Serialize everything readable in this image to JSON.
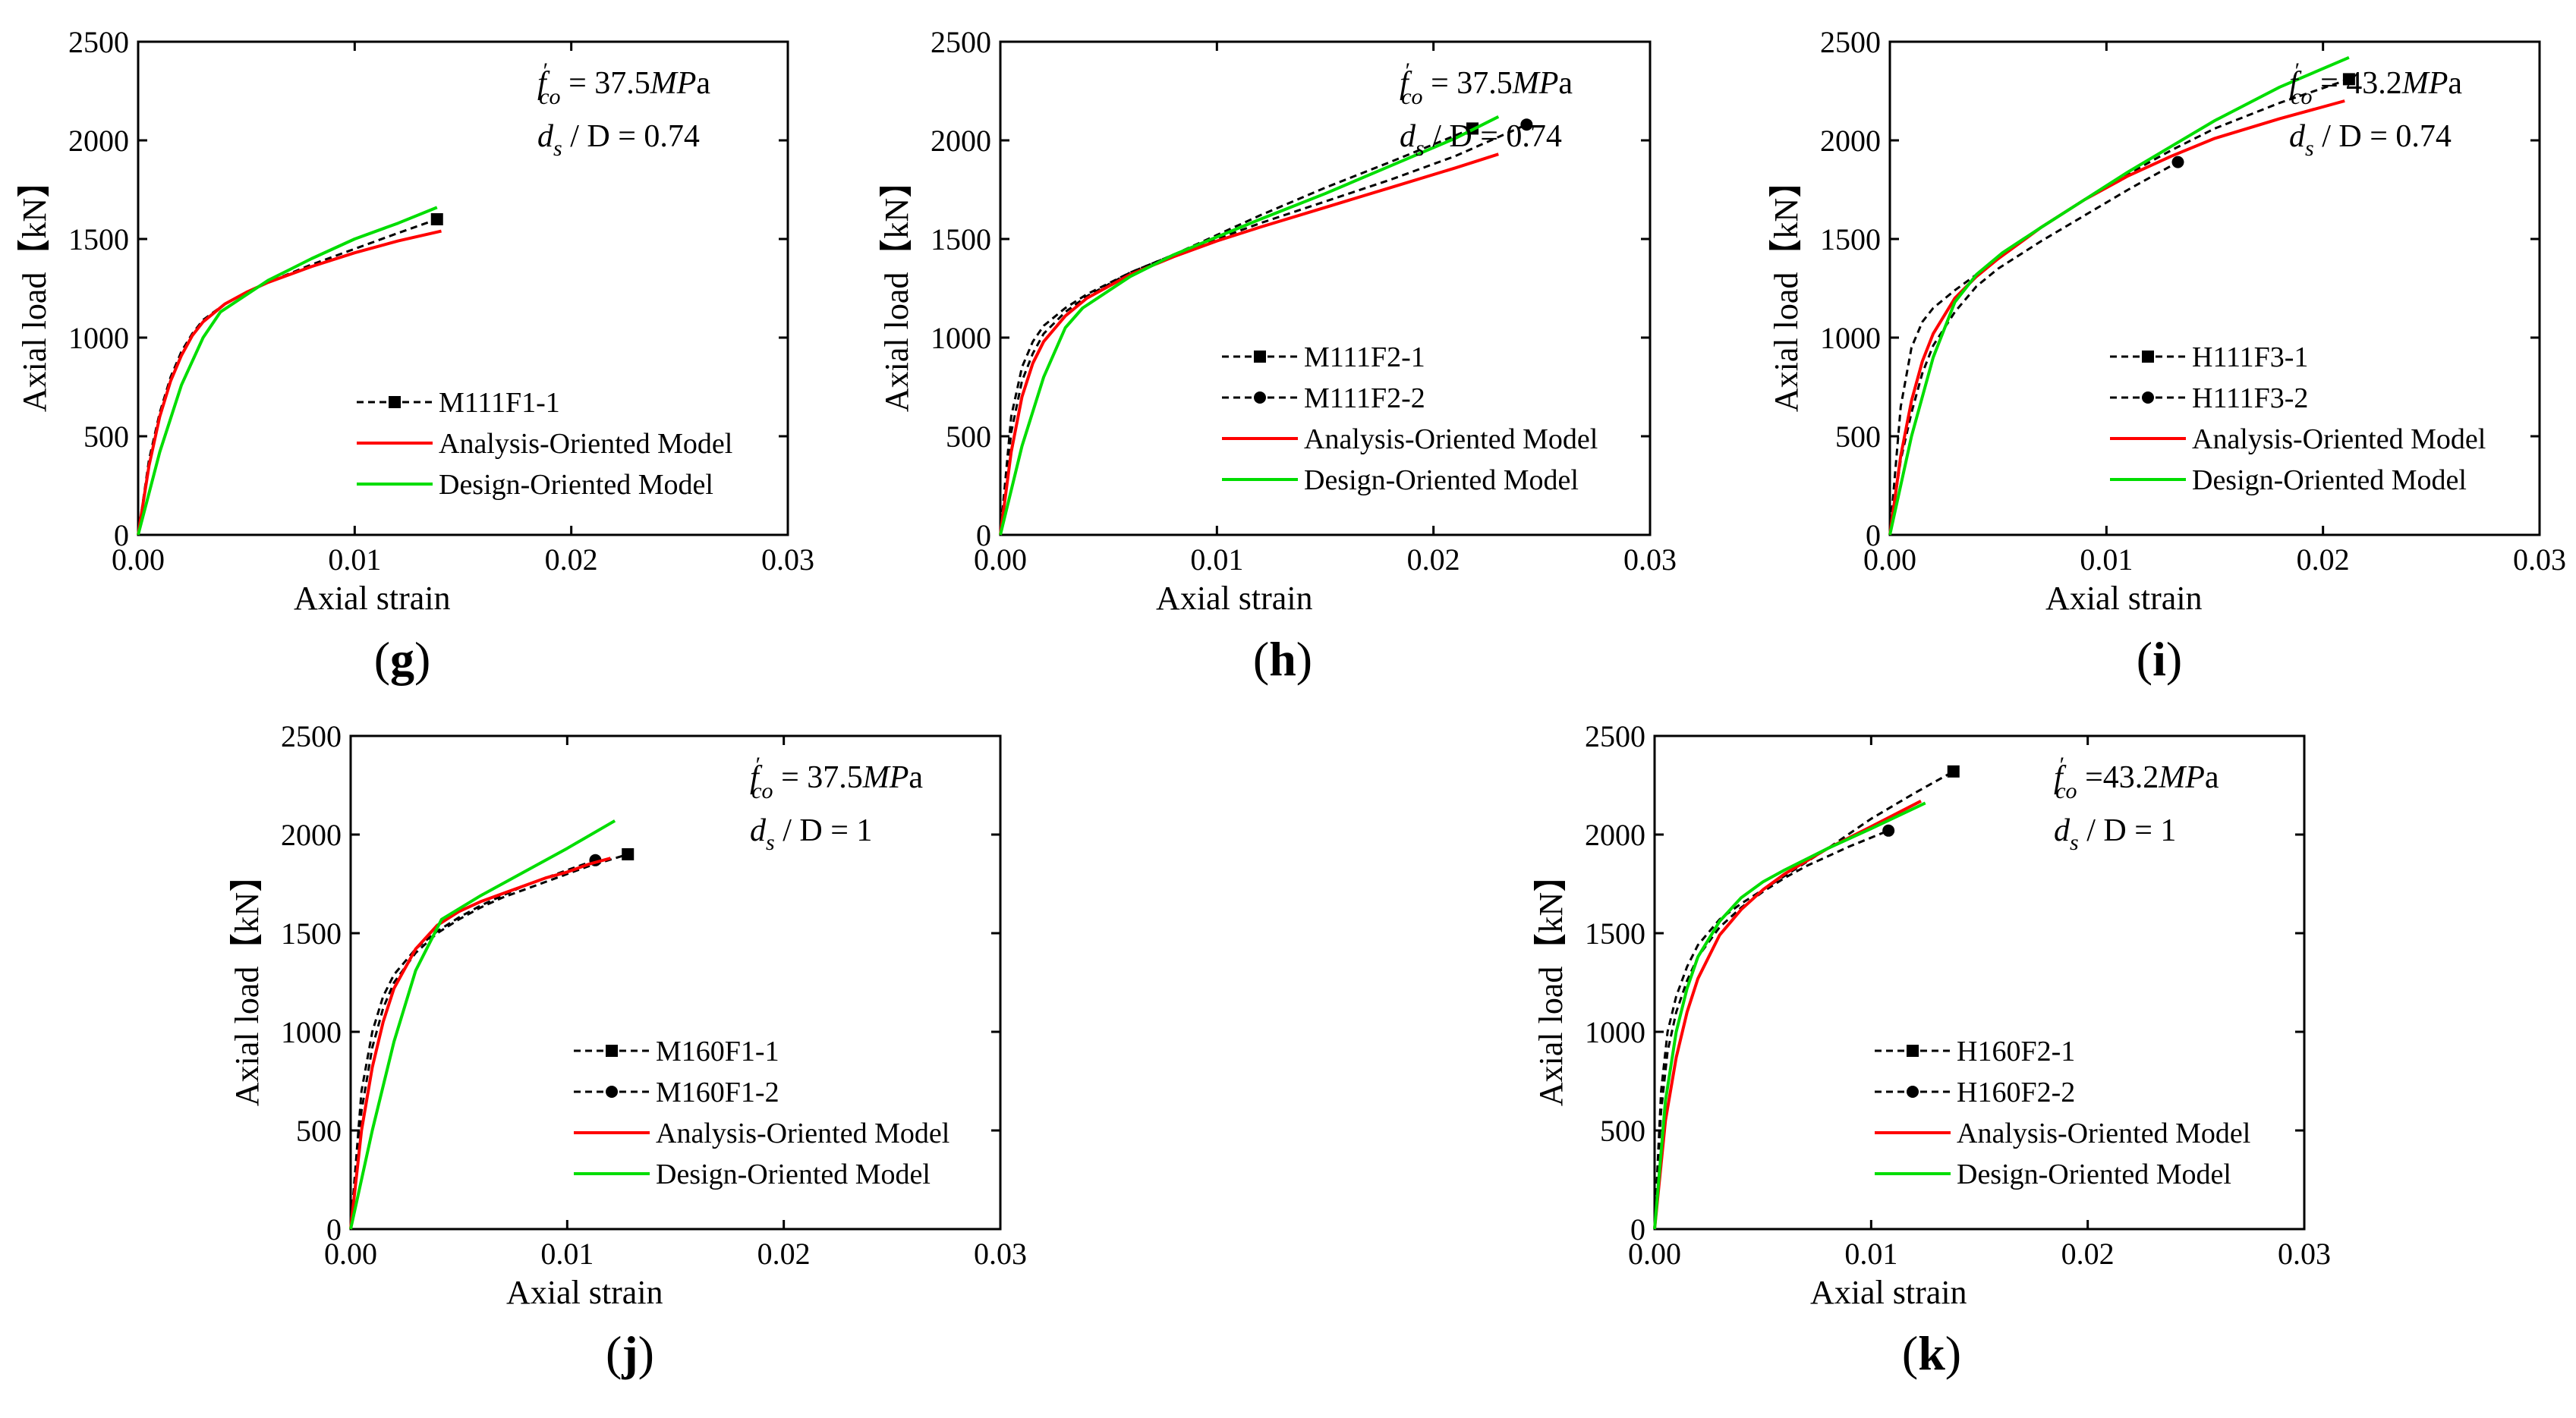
{
  "figure": {
    "paren_open": "(",
    "paren_close": ")"
  },
  "colors": {
    "analysis": "#ff0000",
    "design": "#00dd00",
    "experimental": "#000000"
  },
  "chart_data": [
    {
      "id": "g",
      "panel_label": "g",
      "type": "line",
      "xlabel": "Axial strain",
      "ylabel": "Axial load【kN】",
      "xlim": [
        0,
        0.03
      ],
      "ylim": [
        0,
        2500
      ],
      "xticks": [
        "0.00",
        "0.01",
        "0.02",
        "0.03"
      ],
      "yticks": [
        "0",
        "500",
        "1000",
        "1500",
        "2000",
        "2500"
      ],
      "annotation": {
        "fco_value": " = 37.5",
        "fco_unit_italic": "MP",
        "fco_unit_tail": "a",
        "ratio_value": " / D = 0.74"
      },
      "legend_position": "bottom-right",
      "series": [
        {
          "name": "M111F1-1",
          "kind": "exp",
          "marker": "square",
          "x": [
            0,
            0.0005,
            0.001,
            0.0015,
            0.002,
            0.0025,
            0.003,
            0.004,
            0.005,
            0.006,
            0.008,
            0.01,
            0.012,
            0.0138
          ],
          "y": [
            0,
            380,
            620,
            800,
            930,
            1020,
            1090,
            1170,
            1230,
            1280,
            1370,
            1450,
            1530,
            1600
          ]
        },
        {
          "name": "Analysis-Oriented Model",
          "kind": "analysis",
          "x": [
            0,
            0.0005,
            0.001,
            0.0015,
            0.002,
            0.0025,
            0.003,
            0.004,
            0.005,
            0.006,
            0.008,
            0.01,
            0.012,
            0.014
          ],
          "y": [
            0,
            350,
            600,
            780,
            910,
            1010,
            1080,
            1170,
            1230,
            1280,
            1360,
            1430,
            1490,
            1540
          ]
        },
        {
          "name": "Design-Oriented Model",
          "kind": "design",
          "x": [
            0,
            0.001,
            0.002,
            0.003,
            0.0038,
            0.006,
            0.008,
            0.01,
            0.012,
            0.0138
          ],
          "y": [
            0,
            420,
            760,
            1000,
            1130,
            1290,
            1400,
            1500,
            1580,
            1660
          ]
        }
      ]
    },
    {
      "id": "h",
      "panel_label": "h",
      "type": "line",
      "xlabel": "Axial strain",
      "ylabel": "Axial load【kN】",
      "xlim": [
        0,
        0.03
      ],
      "ylim": [
        0,
        2500
      ],
      "xticks": [
        "0.00",
        "0.01",
        "0.02",
        "0.03"
      ],
      "yticks": [
        "0",
        "500",
        "1000",
        "1500",
        "2000",
        "2500"
      ],
      "annotation": {
        "fco_value": " = 37.5",
        "fco_unit_italic": "MP",
        "fco_unit_tail": "a",
        "ratio_value": " / D = 0.74"
      },
      "legend_position": "bottom-right",
      "series": [
        {
          "name": "M111F2-1",
          "kind": "exp",
          "marker": "square",
          "x": [
            0,
            0.0005,
            0.001,
            0.0015,
            0.002,
            0.003,
            0.004,
            0.006,
            0.008,
            0.01,
            0.012,
            0.015,
            0.018,
            0.0218
          ],
          "y": [
            0,
            600,
            850,
            980,
            1060,
            1150,
            1220,
            1330,
            1420,
            1520,
            1620,
            1760,
            1890,
            2060
          ]
        },
        {
          "name": "M111F2-2",
          "kind": "exp",
          "marker": "circle",
          "x": [
            0,
            0.0005,
            0.001,
            0.0015,
            0.002,
            0.003,
            0.004,
            0.006,
            0.008,
            0.01,
            0.012,
            0.015,
            0.018,
            0.021,
            0.0243
          ],
          "y": [
            0,
            520,
            780,
            920,
            1020,
            1130,
            1210,
            1330,
            1420,
            1500,
            1580,
            1690,
            1800,
            1920,
            2080
          ]
        },
        {
          "name": "Analysis-Oriented Model",
          "kind": "analysis",
          "x": [
            0,
            0.0005,
            0.001,
            0.0015,
            0.002,
            0.003,
            0.004,
            0.006,
            0.008,
            0.01,
            0.012,
            0.015,
            0.018,
            0.021,
            0.023
          ],
          "y": [
            0,
            420,
            700,
            870,
            980,
            1110,
            1200,
            1320,
            1410,
            1490,
            1560,
            1660,
            1760,
            1860,
            1930
          ]
        },
        {
          "name": "Design-Oriented Model",
          "kind": "design",
          "x": [
            0,
            0.001,
            0.002,
            0.003,
            0.0038,
            0.006,
            0.008,
            0.01,
            0.012,
            0.015,
            0.018,
            0.021,
            0.023
          ],
          "y": [
            0,
            450,
            800,
            1050,
            1150,
            1310,
            1420,
            1510,
            1600,
            1730,
            1870,
            2010,
            2120
          ]
        }
      ]
    },
    {
      "id": "i",
      "panel_label": "i",
      "type": "line",
      "xlabel": "Axial strain",
      "ylabel": "Axial load【kN】",
      "xlim": [
        0,
        0.03
      ],
      "ylim": [
        0,
        2500
      ],
      "xticks": [
        "0.00",
        "0.01",
        "0.02",
        "0.03"
      ],
      "yticks": [
        "0",
        "500",
        "1000",
        "1500",
        "2000",
        "2500"
      ],
      "annotation": {
        "fco_value": " = 43.2",
        "fco_unit_italic": "MP",
        "fco_unit_tail": "a",
        "ratio_value": " / D = 0.74"
      },
      "legend_position": "bottom-right",
      "series": [
        {
          "name": "H111F3-1",
          "kind": "exp",
          "marker": "square",
          "x": [
            0,
            0.0005,
            0.001,
            0.0015,
            0.002,
            0.003,
            0.004,
            0.005,
            0.007,
            0.009,
            0.011,
            0.013,
            0.015,
            0.018,
            0.0212
          ],
          "y": [
            0,
            650,
            950,
            1080,
            1150,
            1240,
            1320,
            1400,
            1560,
            1700,
            1830,
            1950,
            2060,
            2190,
            2310
          ]
        },
        {
          "name": "H111F3-2",
          "kind": "exp",
          "marker": "circle",
          "x": [
            0,
            0.0005,
            0.001,
            0.0015,
            0.002,
            0.003,
            0.004,
            0.005,
            0.007,
            0.009,
            0.011,
            0.0133
          ],
          "y": [
            0,
            380,
            620,
            820,
            960,
            1130,
            1260,
            1350,
            1490,
            1620,
            1750,
            1890
          ]
        },
        {
          "name": "Analysis-Oriented Model",
          "kind": "analysis",
          "x": [
            0,
            0.0005,
            0.001,
            0.0015,
            0.002,
            0.003,
            0.004,
            0.005,
            0.007,
            0.009,
            0.011,
            0.013,
            0.015,
            0.018,
            0.021
          ],
          "y": [
            0,
            400,
            680,
            880,
            1020,
            1200,
            1310,
            1400,
            1560,
            1700,
            1820,
            1920,
            2010,
            2110,
            2200
          ]
        },
        {
          "name": "Design-Oriented Model",
          "kind": "design",
          "x": [
            0,
            0.001,
            0.002,
            0.003,
            0.004,
            0.0052,
            0.007,
            0.009,
            0.011,
            0.013,
            0.015,
            0.018,
            0.0212
          ],
          "y": [
            0,
            500,
            900,
            1180,
            1320,
            1430,
            1560,
            1700,
            1840,
            1970,
            2100,
            2270,
            2420
          ]
        }
      ]
    },
    {
      "id": "j",
      "panel_label": "j",
      "type": "line",
      "xlabel": "Axial strain",
      "ylabel": "Axial load【kN】",
      "xlim": [
        0,
        0.03
      ],
      "ylim": [
        0,
        2500
      ],
      "xticks": [
        "0.00",
        "0.01",
        "0.02",
        "0.03"
      ],
      "yticks": [
        "0",
        "500",
        "1000",
        "1500",
        "2000",
        "2500"
      ],
      "annotation": {
        "fco_value": " = 37.5",
        "fco_unit_italic": "MP",
        "fco_unit_tail": "a",
        "ratio_value": " / D = 1"
      },
      "legend_position": "bottom-right",
      "series": [
        {
          "name": "M160F1-1",
          "kind": "exp",
          "marker": "square",
          "x": [
            0,
            0.0005,
            0.001,
            0.0015,
            0.002,
            0.003,
            0.004,
            0.005,
            0.006,
            0.007,
            0.008,
            0.009,
            0.01,
            0.011,
            0.0128
          ],
          "y": [
            0,
            600,
            920,
            1120,
            1250,
            1400,
            1500,
            1570,
            1630,
            1680,
            1720,
            1760,
            1800,
            1840,
            1900
          ]
        },
        {
          "name": "M160F1-2",
          "kind": "exp",
          "marker": "circle",
          "x": [
            0,
            0.0005,
            0.001,
            0.0015,
            0.002,
            0.003,
            0.004,
            0.005,
            0.006,
            0.007,
            0.008,
            0.009,
            0.01,
            0.0113
          ],
          "y": [
            0,
            700,
            1000,
            1180,
            1290,
            1420,
            1510,
            1580,
            1640,
            1690,
            1740,
            1780,
            1820,
            1870
          ]
        },
        {
          "name": "Analysis-Oriented Model",
          "kind": "analysis",
          "x": [
            0,
            0.0005,
            0.001,
            0.0015,
            0.002,
            0.003,
            0.004,
            0.005,
            0.006,
            0.007,
            0.008,
            0.009,
            0.01,
            0.011,
            0.012
          ],
          "y": [
            0,
            500,
            820,
            1050,
            1220,
            1420,
            1540,
            1610,
            1660,
            1700,
            1740,
            1780,
            1810,
            1850,
            1880
          ]
        },
        {
          "name": "Design-Oriented Model",
          "kind": "design",
          "x": [
            0,
            0.001,
            0.002,
            0.003,
            0.0042,
            0.006,
            0.008,
            0.01,
            0.0122
          ],
          "y": [
            0,
            500,
            950,
            1310,
            1570,
            1690,
            1810,
            1930,
            2070
          ]
        }
      ]
    },
    {
      "id": "k",
      "panel_label": "k",
      "type": "line",
      "xlabel": "Axial strain",
      "ylabel": "Axial load【kN】",
      "xlim": [
        0,
        0.03
      ],
      "ylim": [
        0,
        2500
      ],
      "xticks": [
        "0.00",
        "0.01",
        "0.02",
        "0.03"
      ],
      "yticks": [
        "0",
        "500",
        "1000",
        "1500",
        "2000",
        "2500"
      ],
      "annotation": {
        "fco_value": " =43.2",
        "fco_unit_italic": "MP",
        "fco_unit_tail": "a",
        "ratio_value": " / D = 1"
      },
      "legend_position": "bottom-right",
      "series": [
        {
          "name": "H160F2-1",
          "kind": "exp",
          "marker": "square",
          "x": [
            0,
            0.0003,
            0.0006,
            0.001,
            0.0015,
            0.002,
            0.003,
            0.004,
            0.005,
            0.006,
            0.008,
            0.01,
            0.012,
            0.0138
          ],
          "y": [
            0,
            700,
            1000,
            1180,
            1330,
            1440,
            1570,
            1650,
            1720,
            1790,
            1930,
            2080,
            2210,
            2320
          ]
        },
        {
          "name": "H160F2-2",
          "kind": "exp",
          "marker": "circle",
          "x": [
            0,
            0.0003,
            0.0006,
            0.001,
            0.0015,
            0.002,
            0.003,
            0.004,
            0.005,
            0.006,
            0.007,
            0.008,
            0.009,
            0.0108
          ],
          "y": [
            0,
            600,
            900,
            1100,
            1260,
            1380,
            1530,
            1630,
            1710,
            1780,
            1840,
            1890,
            1940,
            2020
          ]
        },
        {
          "name": "Analysis-Oriented Model",
          "kind": "analysis",
          "x": [
            0,
            0.0005,
            0.001,
            0.0015,
            0.002,
            0.003,
            0.004,
            0.005,
            0.006,
            0.008,
            0.01,
            0.0123
          ],
          "y": [
            0,
            550,
            870,
            1100,
            1270,
            1490,
            1620,
            1720,
            1800,
            1930,
            2040,
            2170
          ]
        },
        {
          "name": "Design-Oriented Model",
          "kind": "design",
          "x": [
            0,
            0.0005,
            0.001,
            0.0015,
            0.002,
            0.003,
            0.004,
            0.005,
            0.006,
            0.008,
            0.01,
            0.0125
          ],
          "y": [
            0,
            650,
            1000,
            1220,
            1380,
            1560,
            1680,
            1760,
            1820,
            1930,
            2030,
            2160
          ]
        }
      ]
    }
  ]
}
